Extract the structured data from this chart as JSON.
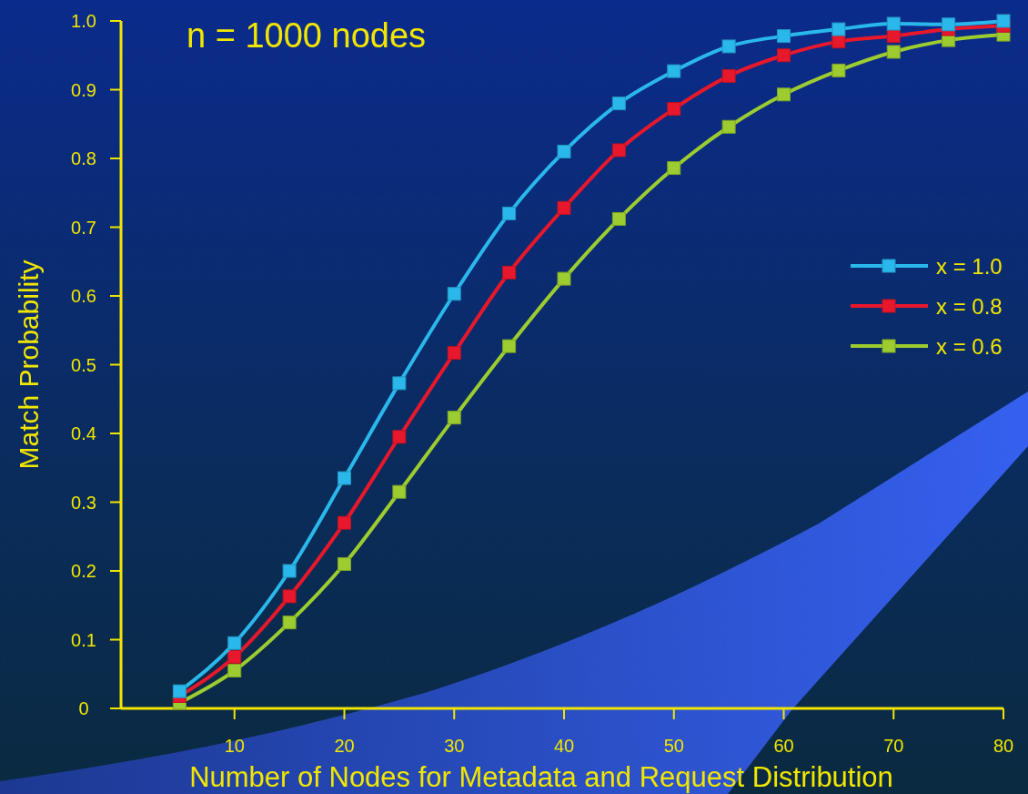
{
  "chart_data": {
    "type": "line",
    "title": "n = 1000 nodes",
    "xlabel": "Number of Nodes for Metadata and Request Distribution",
    "ylabel": "Match Probability",
    "x": [
      5,
      10,
      15,
      20,
      25,
      30,
      35,
      40,
      45,
      50,
      55,
      60,
      65,
      70,
      75,
      80
    ],
    "series": [
      {
        "name": "x = 1.0",
        "color": "#2ab8ec",
        "values": [
          0.025,
          0.095,
          0.2,
          0.335,
          0.473,
          0.603,
          0.72,
          0.81,
          0.88,
          0.927,
          0.963,
          0.978,
          0.988,
          0.996,
          0.995,
          1.0
        ]
      },
      {
        "name": "x = 0.8",
        "color": "#e8182c",
        "values": [
          0.018,
          0.075,
          0.163,
          0.27,
          0.395,
          0.517,
          0.634,
          0.728,
          0.812,
          0.872,
          0.92,
          0.95,
          0.97,
          0.978,
          0.988,
          0.993
        ]
      },
      {
        "name": "x = 0.6",
        "color": "#9ccc30",
        "values": [
          0.008,
          0.055,
          0.125,
          0.21,
          0.315,
          0.423,
          0.527,
          0.625,
          0.712,
          0.786,
          0.846,
          0.893,
          0.928,
          0.955,
          0.972,
          0.98
        ]
      }
    ],
    "xlim": [
      0,
      80
    ],
    "xticks": [
      10,
      20,
      30,
      40,
      50,
      60,
      70,
      80
    ],
    "ylim": [
      0,
      1
    ],
    "yticks": [
      0,
      0.1,
      0.2,
      0.3,
      0.4,
      0.5,
      0.6,
      0.7,
      0.8,
      0.9,
      {
        "value": 1,
        "label": "1.0"
      }
    ],
    "grid": false,
    "legend": "right",
    "marker": "square",
    "line_style": "solid"
  }
}
